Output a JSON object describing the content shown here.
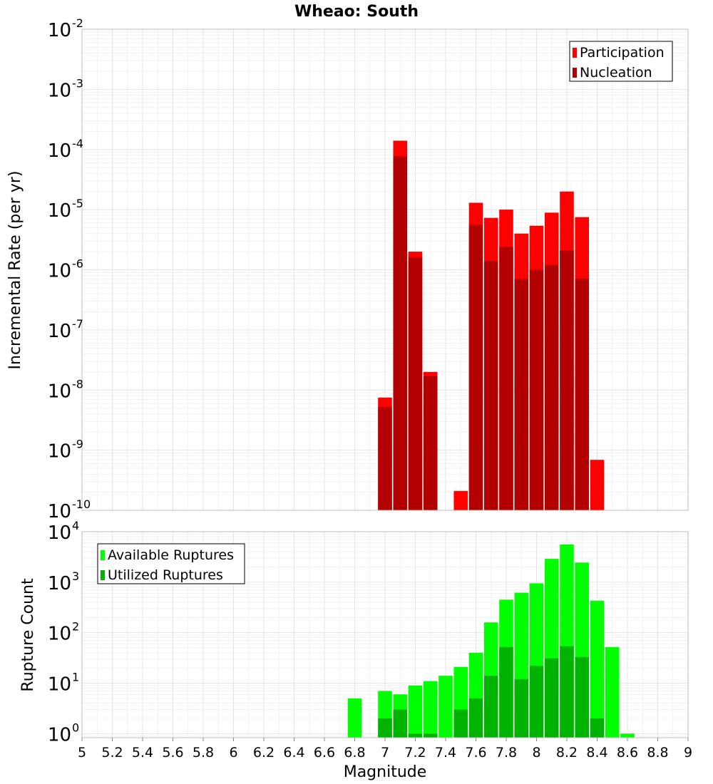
{
  "chart_data": [
    {
      "type": "bar",
      "title": "Wheao: South",
      "ylabel": "Incremental Rate (per yr)",
      "xlim": [
        5,
        9
      ],
      "ylim_exp": [
        -10,
        -2
      ],
      "y_scale": "log",
      "y_tick_labels": [
        "10",
        "10",
        "10",
        "10",
        "10",
        "10",
        "10",
        "10",
        "10"
      ],
      "y_tick_exponents": [
        "-10",
        "-9",
        "-8",
        "-7",
        "-6",
        "-5",
        "-4",
        "-3",
        "-2"
      ],
      "legend": {
        "placement": "top-right",
        "entries": [
          {
            "label": "Participation",
            "color": "#ff0000"
          },
          {
            "label": "Nucleation",
            "color": "#b30000"
          }
        ]
      },
      "series": [
        {
          "name": "Participation",
          "color": "#ff0000",
          "x": [
            7.0,
            7.1,
            7.2,
            7.3,
            7.5,
            7.6,
            7.7,
            7.8,
            7.9,
            8.0,
            8.1,
            8.2,
            8.3,
            8.4
          ],
          "values": [
            7.5e-09,
            0.00014,
            2e-06,
            2e-08,
            2.1e-10,
            1.3e-05,
            7.3e-06,
            1e-05,
            4e-06,
            5.4e-06,
            8.9e-06,
            2e-05,
            7.5e-06,
            6.9e-10
          ]
        },
        {
          "name": "Nucleation",
          "color": "#b30000",
          "x": [
            7.0,
            7.1,
            7.2,
            7.3,
            7.6,
            7.7,
            7.8,
            7.9,
            8.0,
            8.1,
            8.2,
            8.3
          ],
          "values": [
            5.2e-09,
            7.7e-05,
            1.6e-06,
            1.7e-08,
            5.6e-06,
            1.4e-06,
            2.4e-06,
            7e-07,
            1e-06,
            1.2e-06,
            2.1e-06,
            7.1e-07
          ]
        }
      ]
    },
    {
      "type": "bar",
      "xlabel": "Magnitude",
      "ylabel": "Rupture Count",
      "xlim": [
        5,
        9
      ],
      "ylim_exp": [
        -0.08,
        4
      ],
      "y_scale": "log",
      "x_tick_labels": [
        "5",
        "5.2",
        "5.4",
        "5.6",
        "5.8",
        "6",
        "6.2",
        "6.4",
        "6.6",
        "6.8",
        "7",
        "7.2",
        "7.4",
        "7.6",
        "7.8",
        "8",
        "8.2",
        "8.4",
        "8.6",
        "8.8",
        "9"
      ],
      "y_tick_labels": [
        "10",
        "10",
        "10",
        "10",
        "10"
      ],
      "y_tick_exponents": [
        "0",
        "1",
        "2",
        "3",
        "4"
      ],
      "legend": {
        "placement": "top-left",
        "entries": [
          {
            "label": "Available Ruptures",
            "color": "#00ff00"
          },
          {
            "label": "Utilized Ruptures",
            "color": "#00b300"
          }
        ]
      },
      "series": [
        {
          "name": "Available Ruptures",
          "color": "#00ff00",
          "x": [
            6.8,
            7.0,
            7.1,
            7.2,
            7.3,
            7.4,
            7.5,
            7.6,
            7.7,
            7.8,
            7.9,
            8.0,
            8.1,
            8.2,
            8.3,
            8.4,
            8.5,
            8.6
          ],
          "values": [
            5,
            7,
            6,
            9,
            11,
            14,
            21,
            40,
            160,
            450,
            620,
            950,
            2900,
            5600,
            2450,
            430,
            52,
            1
          ]
        },
        {
          "name": "Utilized Ruptures",
          "color": "#00b300",
          "x": [
            7.0,
            7.1,
            7.2,
            7.3,
            7.5,
            7.6,
            7.7,
            7.8,
            7.9,
            8.0,
            8.1,
            8.2,
            8.3,
            8.4
          ],
          "values": [
            2,
            3,
            1,
            1,
            3,
            5,
            14,
            52,
            12,
            22,
            31,
            54,
            33,
            2
          ]
        }
      ]
    }
  ]
}
